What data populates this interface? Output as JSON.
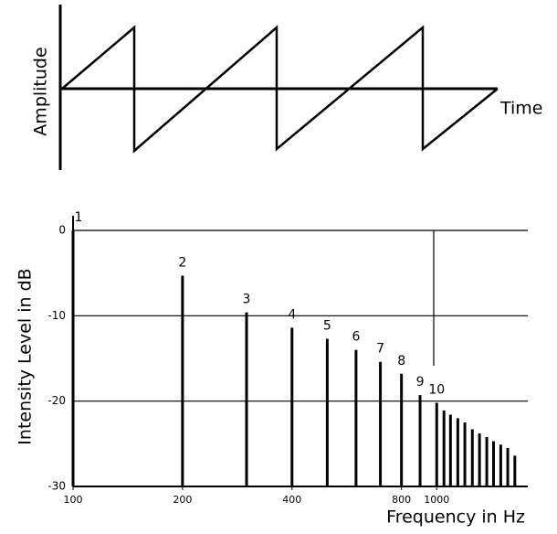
{
  "waveform": {
    "y_label": "Amplitude",
    "x_label": "Time"
  },
  "chart_data": {
    "type": "bar",
    "x_label": "Frequency in Hz",
    "y_label": "Intensity Level in dB",
    "x": [
      100,
      200,
      300,
      400,
      500,
      600,
      700,
      800,
      900,
      1000,
      1047,
      1091,
      1143,
      1195,
      1253,
      1311,
      1373,
      1433,
      1500,
      1568,
      1640
    ],
    "values": [
      0,
      -5.3,
      -9.6,
      -11.4,
      -12.7,
      -14,
      -15.4,
      -16.8,
      -19.3,
      -20.2,
      -21.1,
      -21.6,
      -22,
      -22.5,
      -23.3,
      -23.8,
      -24.2,
      -24.7,
      -25.1,
      -25.5,
      -26.4
    ],
    "labels": [
      "1",
      "2",
      "3",
      "4",
      "5",
      "6",
      "7",
      "8",
      "9",
      "10",
      null,
      null,
      null,
      null,
      null,
      null,
      null,
      null,
      null,
      null,
      null
    ],
    "color": "#000000",
    "xlim": [
      100,
      1780
    ],
    "xscale": "log",
    "xticks": [
      100,
      200,
      400,
      800,
      1000
    ],
    "ylim": [
      -30,
      0
    ],
    "yticks": [
      0,
      -10,
      -20,
      -30
    ],
    "grid": true
  }
}
